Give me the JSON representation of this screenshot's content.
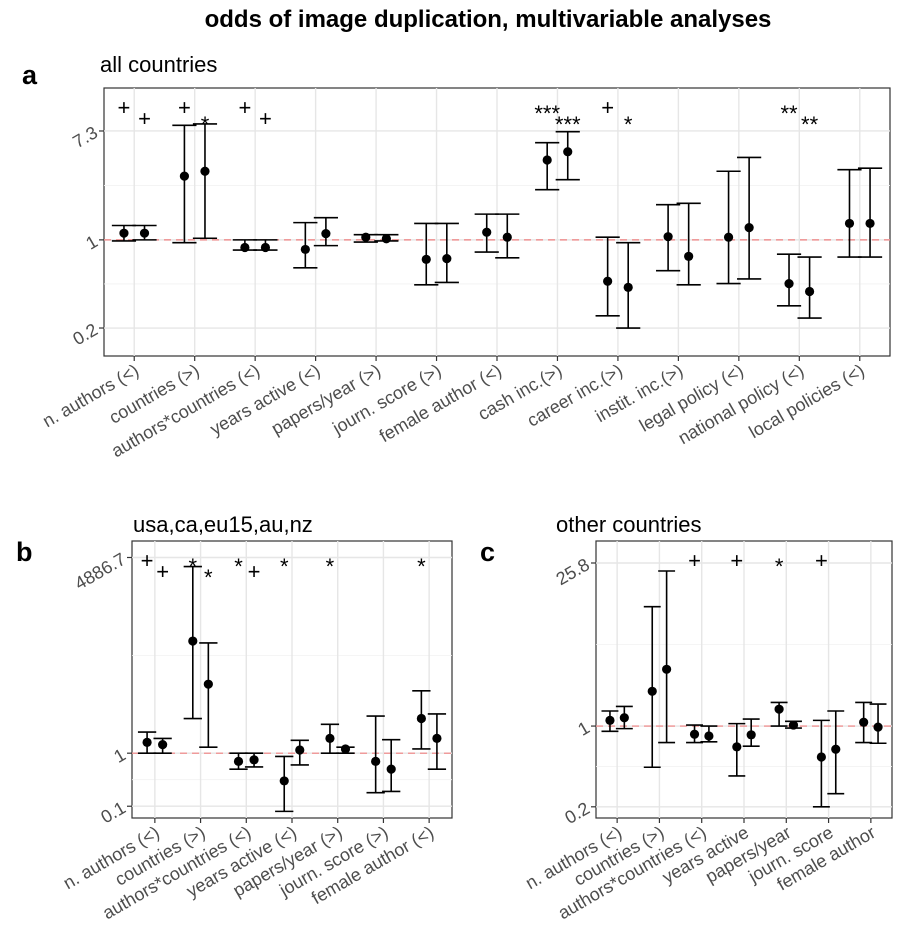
{
  "title": "odds of image duplication, multivariable analyses",
  "chart_data": [
    {
      "panel": "a",
      "subtitle": "all countries",
      "type": "scatter",
      "y_scale": "log",
      "ylim": [
        0.12,
        16
      ],
      "y_ticks": [
        {
          "value": 0.2,
          "label": "0.2"
        },
        {
          "value": 1,
          "label": "1"
        },
        {
          "value": 7.3,
          "label": "7.3"
        }
      ],
      "reference_line": 1,
      "categories": [
        "n. authors (<)",
        "countries (>)",
        "authors*countries (<)",
        "years active (<)",
        "papers/year (>)",
        "journ. score (>)",
        "female author (<)",
        "cash inc.(>)",
        "career inc.(>)",
        "instit. inc.(>)",
        "legal policy (<)",
        "national policy (<)",
        "local policies (<)"
      ],
      "series": [
        {
          "estimates": [
            1.13,
            3.2,
            0.87,
            0.84,
            1.05,
            0.7,
            1.15,
            4.3,
            0.47,
            1.06,
            1.05,
            0.45,
            1.35
          ],
          "lower": [
            0.98,
            0.95,
            0.83,
            0.6,
            0.96,
            0.44,
            0.8,
            2.5,
            0.25,
            0.57,
            0.45,
            0.3,
            0.73
          ],
          "upper": [
            1.3,
            8.1,
            1.0,
            1.37,
            1.1,
            1.35,
            1.6,
            5.9,
            1.05,
            1.9,
            3.5,
            0.77,
            3.6
          ],
          "significance": [
            "+",
            "+",
            "+",
            "",
            "",
            "",
            "",
            "***",
            "+",
            "",
            "",
            "**",
            ""
          ]
        },
        {
          "estimates": [
            1.13,
            3.5,
            0.87,
            1.12,
            1.02,
            0.71,
            1.05,
            5.0,
            0.42,
            0.74,
            1.25,
            0.39,
            1.35
          ],
          "lower": [
            1.0,
            1.03,
            0.83,
            0.9,
            0.98,
            0.46,
            0.72,
            3.0,
            0.2,
            0.44,
            0.49,
            0.24,
            0.73
          ],
          "upper": [
            1.3,
            8.3,
            1.0,
            1.5,
            1.1,
            1.35,
            1.6,
            7.2,
            0.95,
            1.95,
            4.5,
            0.73,
            3.7
          ],
          "significance": [
            "+",
            "*",
            "+",
            "",
            "",
            "",
            "",
            "***",
            "*",
            "",
            "",
            "**",
            ""
          ]
        }
      ]
    },
    {
      "panel": "b",
      "subtitle": "usa,ca,eu15,au,nz",
      "type": "scatter",
      "y_scale": "log",
      "ylim": [
        0.06,
        10000
      ],
      "y_ticks": [
        {
          "value": 0.1,
          "label": "0.1"
        },
        {
          "value": 1,
          "label": "1"
        },
        {
          "value": 4886.7,
          "label": "4886.7"
        }
      ],
      "reference_line": 1,
      "categories": [
        "n. authors (<)",
        "countries (>)",
        "authors*countries (<)",
        "years active (<)",
        "papers/year (>)",
        "journ. score (>)",
        "female author (<)"
      ],
      "series": [
        {
          "estimates": [
            1.6,
            130,
            0.7,
            0.3,
            1.9,
            0.7,
            4.5
          ],
          "lower": [
            1.0,
            4.5,
            0.5,
            0.08,
            1.0,
            0.18,
            1.2
          ],
          "upper": [
            2.5,
            3300,
            1.0,
            0.87,
            3.5,
            5.0,
            15
          ],
          "significance": [
            "+",
            "*",
            "*",
            "*",
            "*",
            "",
            "*"
          ]
        },
        {
          "estimates": [
            1.45,
            20,
            0.75,
            1.15,
            1.2,
            0.5,
            1.9
          ],
          "lower": [
            1.0,
            1.3,
            0.55,
            0.6,
            1.0,
            0.19,
            0.5
          ],
          "upper": [
            1.9,
            120,
            1.0,
            1.75,
            1.3,
            1.8,
            5.5
          ],
          "significance": [
            "+",
            "*",
            "+",
            "",
            "",
            "",
            ""
          ]
        }
      ]
    },
    {
      "panel": "c",
      "subtitle": "other countries",
      "type": "scatter",
      "y_scale": "log",
      "ylim": [
        0.16,
        40
      ],
      "y_ticks": [
        {
          "value": 0.2,
          "label": "0.2"
        },
        {
          "value": 1,
          "label": "1"
        },
        {
          "value": 25.8,
          "label": "25.8"
        }
      ],
      "reference_line": 1,
      "categories": [
        "n. authors (<)",
        "countries (>)",
        "authors*countries (<)",
        "years active",
        "papers/year",
        "journ. score",
        "female author"
      ],
      "series": [
        {
          "estimates": [
            1.12,
            2.0,
            0.85,
            0.66,
            1.4,
            0.54,
            1.08
          ],
          "lower": [
            0.9,
            0.44,
            0.72,
            0.37,
            1.0,
            0.2,
            0.72
          ],
          "upper": [
            1.35,
            10.8,
            1.02,
            1.05,
            1.6,
            1.12,
            1.6
          ],
          "significance": [
            "",
            "",
            "+",
            "+",
            "*",
            "+",
            ""
          ]
        },
        {
          "estimates": [
            1.18,
            3.1,
            0.82,
            0.84,
            1.02,
            0.63,
            0.98
          ],
          "lower": [
            0.95,
            0.72,
            0.73,
            0.67,
            0.96,
            0.26,
            0.71
          ],
          "upper": [
            1.48,
            22,
            1.0,
            1.15,
            1.1,
            1.35,
            1.55
          ],
          "significance": [
            "",
            "",
            "",
            "",
            "",
            "",
            ""
          ]
        }
      ]
    }
  ]
}
